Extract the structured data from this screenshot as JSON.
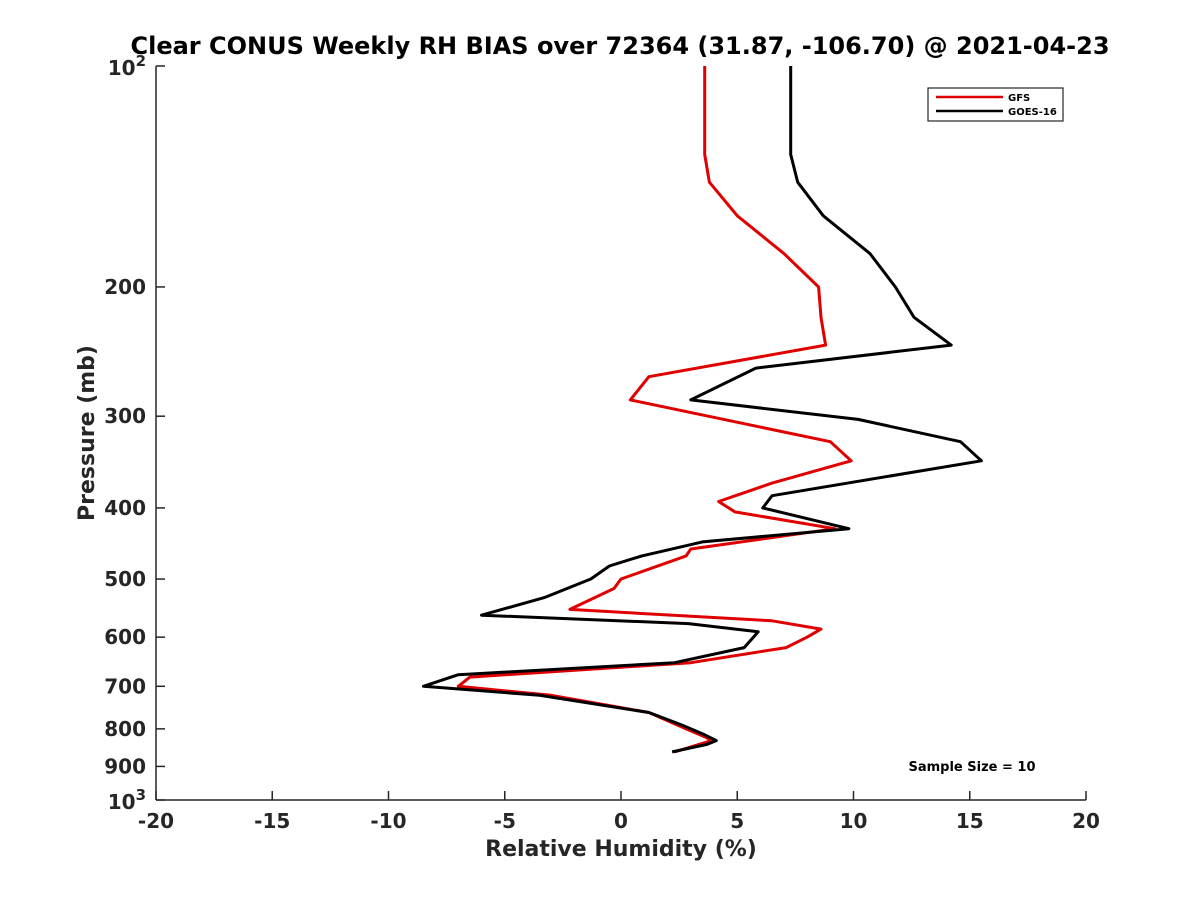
{
  "chart_data": {
    "type": "line",
    "title": "Clear CONUS Weekly RH BIAS over 72364 (31.87, -106.70) @ 2021-04-23",
    "xlabel": "Relative Humidity (%)",
    "ylabel": "Pressure (mb)",
    "xlim": [
      -20,
      20
    ],
    "ylim": [
      100,
      1000
    ],
    "yscale": "log",
    "y_reversed": true,
    "x_ticks": [
      "-20",
      "-15",
      "-10",
      "-5",
      "0",
      "5",
      "10",
      "15",
      "20"
    ],
    "y_ticks": [
      {
        "value": 100,
        "base": "10",
        "exp": "2"
      },
      {
        "value": 200,
        "label": "200"
      },
      {
        "value": 300,
        "label": "300"
      },
      {
        "value": 400,
        "label": "400"
      },
      {
        "value": 500,
        "label": "500"
      },
      {
        "value": 600,
        "label": "600"
      },
      {
        "value": 700,
        "label": "700"
      },
      {
        "value": 800,
        "label": "800"
      },
      {
        "value": 900,
        "label": "900"
      },
      {
        "value": 1000,
        "base": "10",
        "exp": "3"
      }
    ],
    "grid": false,
    "legend_position": "top-right",
    "series": [
      {
        "name": "GFS",
        "color": "#e00000",
        "x": [
          3.6,
          3.6,
          3.6,
          3.6,
          3.8,
          5.0,
          7.0,
          8.5,
          8.6,
          8.8,
          1.2,
          0.4,
          9.0,
          9.9,
          6.5,
          4.2,
          4.9,
          9.2,
          3.0,
          2.8,
          0.0,
          -0.3,
          -2.2,
          6.5,
          8.6,
          8.0,
          7.1,
          3.0,
          -6.5,
          -7.0,
          -3.0,
          1.2,
          2.8,
          3.6,
          3.9,
          2.3
        ],
        "y": [
          100,
          110,
          121,
          132,
          144,
          160,
          180,
          200,
          220,
          240,
          265,
          285,
          325,
          345,
          370,
          392,
          405,
          427,
          455,
          465,
          500,
          515,
          550,
          570,
          585,
          600,
          620,
          650,
          680,
          700,
          720,
          760,
          800,
          820,
          830,
          860
        ]
      },
      {
        "name": "GOES-16",
        "color": "#000000",
        "x": [
          7.3,
          7.3,
          7.3,
          7.3,
          7.6,
          8.7,
          10.7,
          11.8,
          12.6,
          14.2,
          5.8,
          3.0,
          10.2,
          14.6,
          15.5,
          6.5,
          6.1,
          9.8,
          3.5,
          0.9,
          -0.5,
          -1.3,
          -3.3,
          -6.0,
          2.9,
          5.9,
          5.3,
          2.3,
          -7.0,
          -8.5,
          -3.5,
          1.2,
          2.6,
          3.6,
          4.1,
          3.7,
          2.2
        ],
        "y": [
          100,
          110,
          121,
          132,
          144,
          160,
          180,
          200,
          220,
          240,
          258,
          285,
          303,
          325,
          345,
          385,
          400,
          427,
          445,
          465,
          480,
          500,
          530,
          560,
          575,
          590,
          620,
          650,
          675,
          700,
          720,
          760,
          790,
          815,
          830,
          840,
          860
        ]
      }
    ],
    "annotations": [
      "Sample Size = 10"
    ]
  }
}
